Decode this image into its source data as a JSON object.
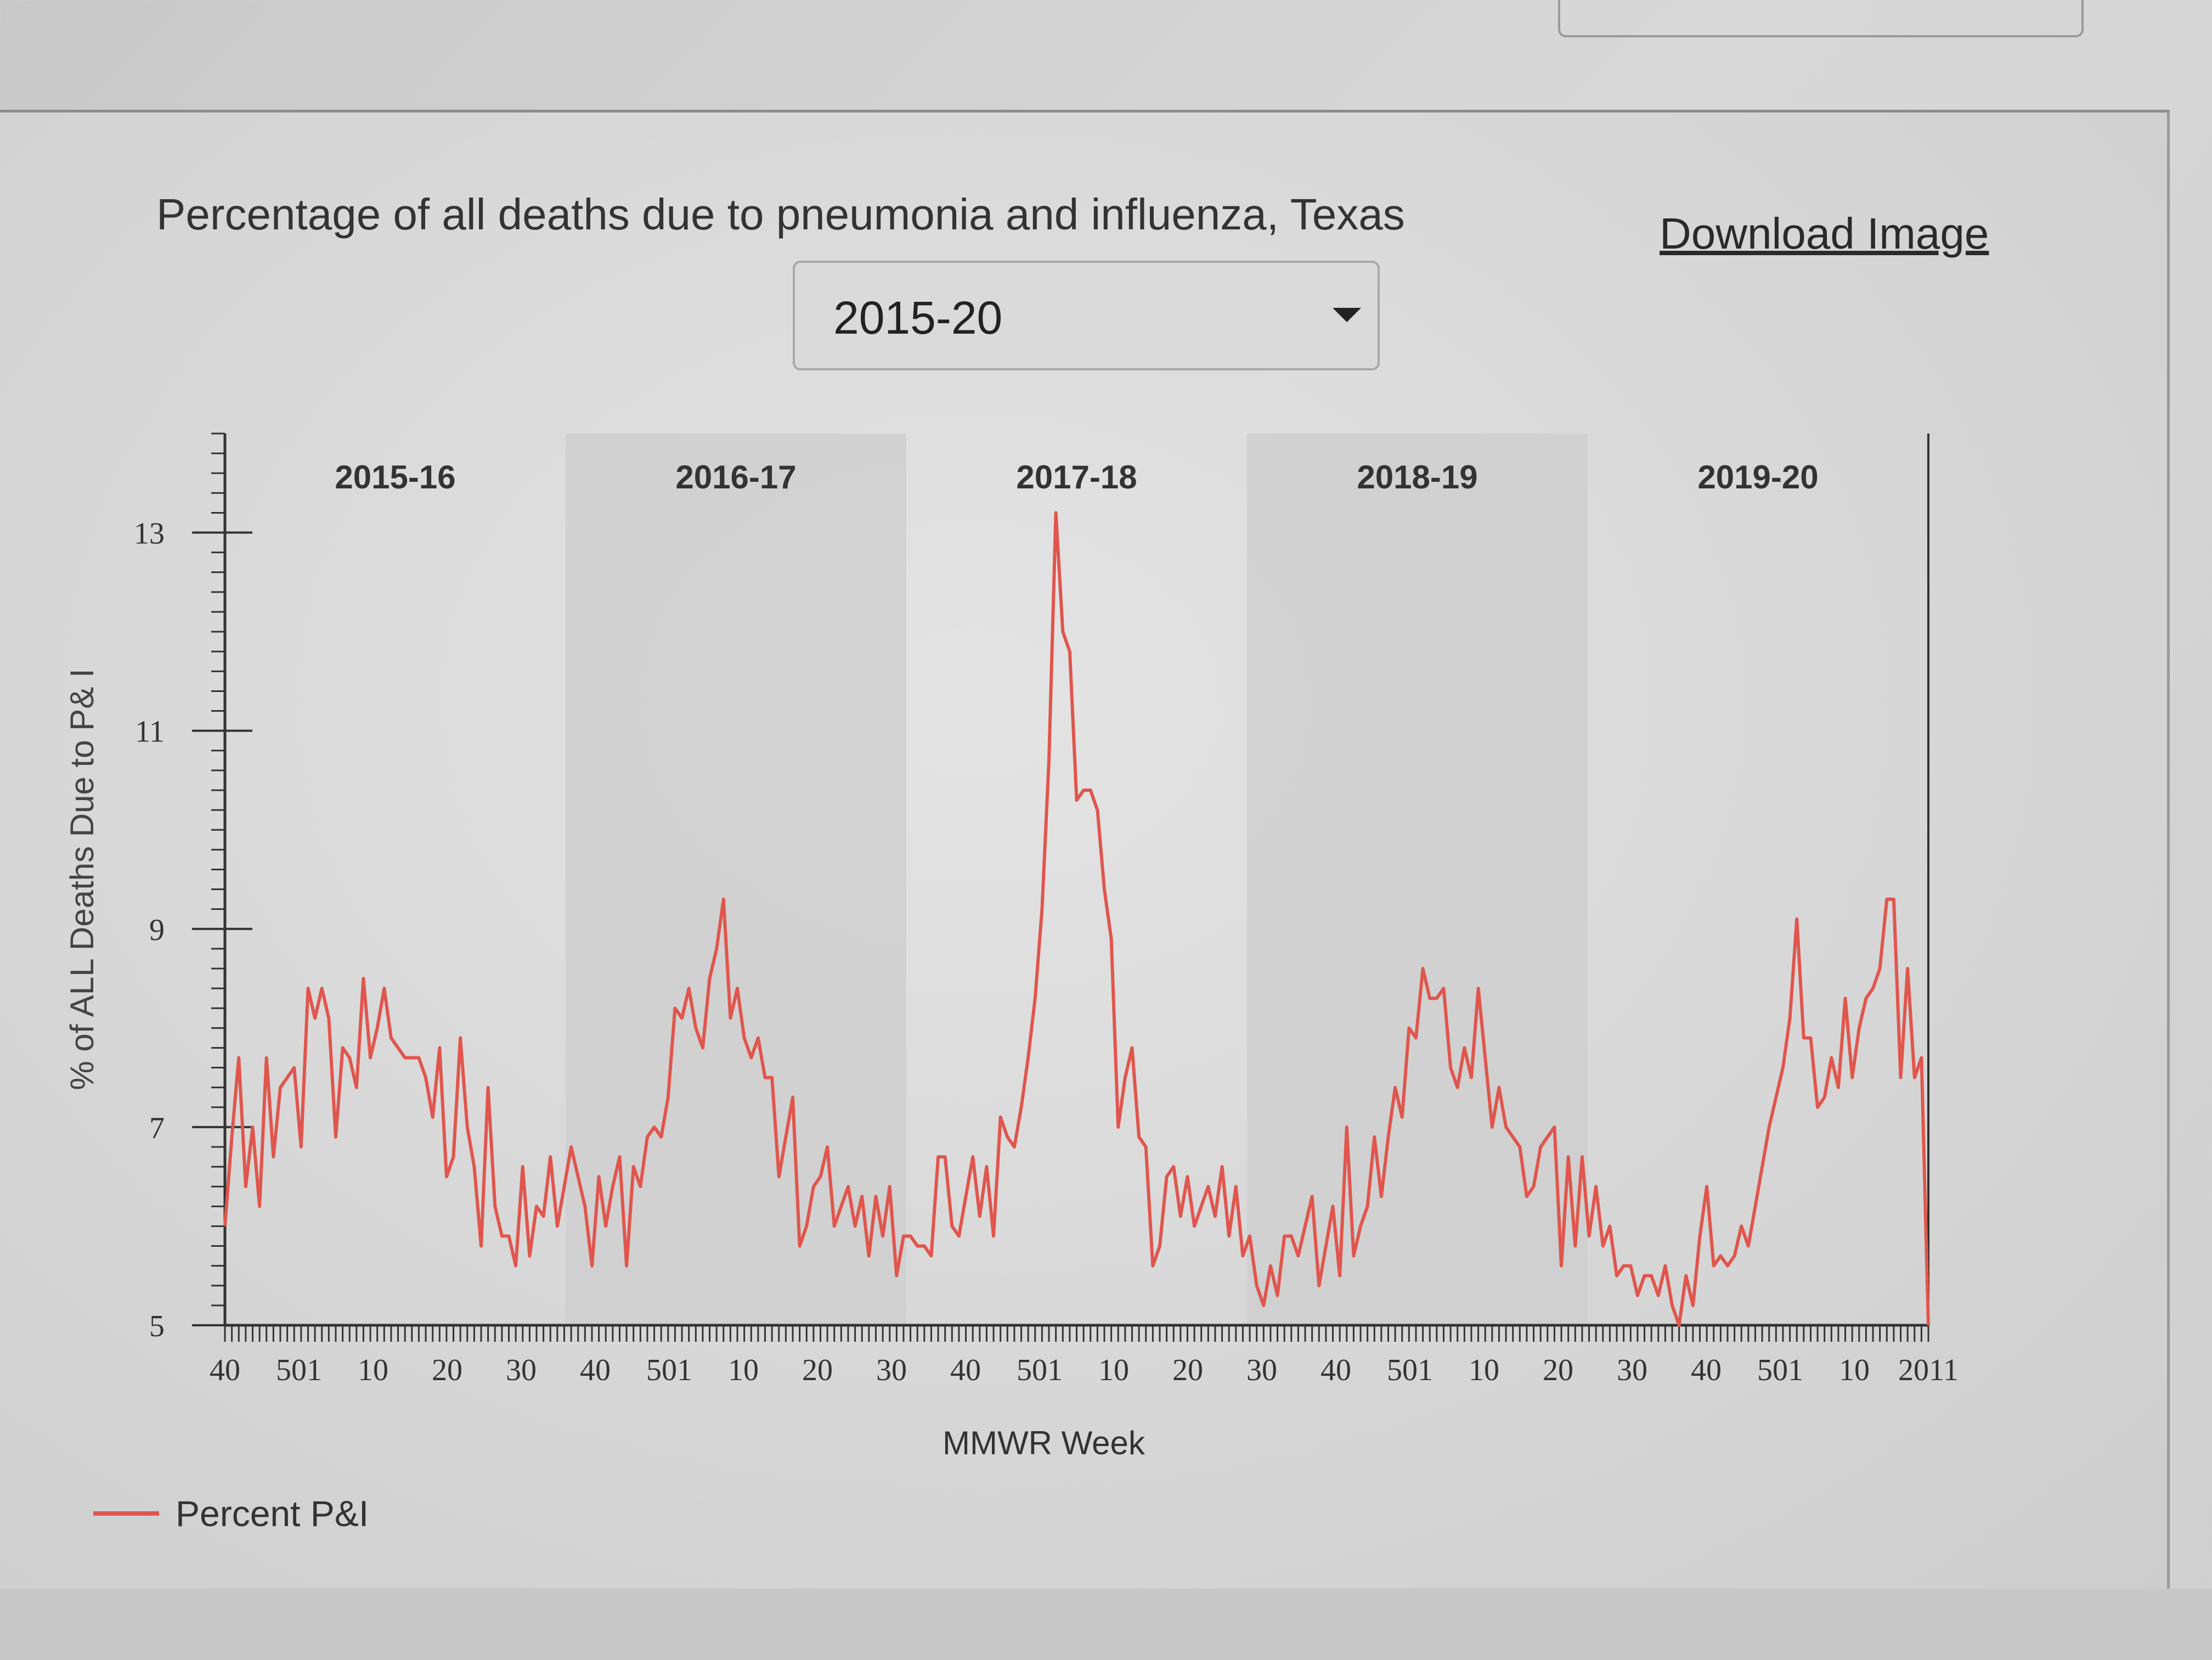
{
  "title": "Percentage of all deaths due to pneumonia and influenza, Texas",
  "download_label": "Download Image",
  "season_select": {
    "value": "2015-20"
  },
  "colors": {
    "line": "#e0564d",
    "shade": "#cfcfcf",
    "axis": "#333333"
  },
  "icons": {
    "select_caret": "chevron-down-icon"
  },
  "chart_data": {
    "type": "line",
    "xlabel": "MMWR Week",
    "ylabel": "% of ALL Deaths Due to P& I",
    "ylim": [
      5,
      14
    ],
    "yticks": [
      5,
      7,
      9,
      11,
      13
    ],
    "xtick_labels": [
      "40",
      "501",
      "10",
      "20",
      "30",
      "40",
      "501",
      "10",
      "20",
      "30",
      "40",
      "501",
      "10",
      "20",
      "30",
      "40",
      "501",
      "10",
      "20",
      "30",
      "40",
      "501",
      "10",
      "2011"
    ],
    "seasons": [
      "2015-16",
      "2016-17",
      "2017-18",
      "2018-19",
      "2019-20"
    ],
    "shaded_seasons": [
      "2016-17",
      "2018-19"
    ],
    "series": [
      {
        "name": "Percent P&I",
        "values": [
          6.0,
          6.9,
          7.7,
          6.4,
          7.0,
          6.2,
          7.7,
          6.7,
          7.4,
          7.5,
          7.6,
          6.8,
          8.4,
          8.1,
          8.4,
          8.1,
          6.9,
          7.8,
          7.7,
          7.4,
          8.5,
          7.7,
          8.0,
          8.4,
          7.9,
          7.8,
          7.7,
          7.7,
          7.7,
          7.5,
          7.1,
          7.8,
          6.5,
          6.7,
          7.9,
          7.0,
          6.6,
          5.8,
          7.4,
          6.2,
          5.9,
          5.9,
          5.6,
          6.6,
          5.7,
          6.2,
          6.1,
          6.7,
          6.0,
          6.4,
          6.8,
          6.5,
          6.2,
          5.6,
          6.5,
          6.0,
          6.4,
          6.7,
          5.6,
          6.6,
          6.4,
          6.9,
          7.0,
          6.9,
          7.3,
          8.2,
          8.1,
          8.4,
          8.0,
          7.8,
          8.5,
          8.8,
          9.3,
          8.1,
          8.4,
          7.9,
          7.7,
          7.9,
          7.5,
          7.5,
          6.5,
          6.9,
          7.3,
          5.8,
          6.0,
          6.4,
          6.5,
          6.8,
          6.0,
          6.2,
          6.4,
          6.0,
          6.3,
          5.7,
          6.3,
          5.9,
          6.4,
          5.5,
          5.9,
          5.9,
          5.8,
          5.8,
          5.7,
          6.7,
          6.7,
          6.0,
          5.9,
          6.3,
          6.7,
          6.1,
          6.6,
          5.9,
          7.1,
          6.9,
          6.8,
          7.2,
          7.7,
          8.3,
          9.2,
          10.7,
          13.2,
          12.0,
          11.8,
          10.3,
          10.4,
          10.4,
          10.2,
          9.4,
          8.9,
          7.0,
          7.5,
          7.8,
          6.9,
          6.8,
          5.6,
          5.8,
          6.5,
          6.6,
          6.1,
          6.5,
          6.0,
          6.2,
          6.4,
          6.1,
          6.6,
          5.9,
          6.4,
          5.7,
          5.9,
          5.4,
          5.2,
          5.6,
          5.3,
          5.9,
          5.9,
          5.7,
          6.0,
          6.3,
          5.4,
          5.8,
          6.2,
          5.5,
          7.0,
          5.7,
          6.0,
          6.2,
          6.9,
          6.3,
          6.9,
          7.4,
          7.1,
          8.0,
          7.9,
          8.6,
          8.3,
          8.3,
          8.4,
          7.6,
          7.4,
          7.8,
          7.5,
          8.4,
          7.7,
          7.0,
          7.4,
          7.0,
          6.9,
          6.8,
          6.3,
          6.4,
          6.8,
          6.9,
          7.0,
          5.6,
          6.7,
          5.8,
          6.7,
          5.9,
          6.4,
          5.8,
          6.0,
          5.5,
          5.6,
          5.6,
          5.3,
          5.5,
          5.5,
          5.3,
          5.6,
          5.2,
          5.0,
          5.5,
          5.2,
          5.9,
          6.4,
          5.6,
          5.7,
          5.6,
          5.7,
          6.0,
          5.8,
          6.2,
          6.6,
          7.0,
          7.3,
          7.6,
          8.1,
          9.1,
          7.9,
          7.9,
          7.2,
          7.3,
          7.7,
          7.4,
          8.3,
          7.5,
          8.0,
          8.3,
          8.4,
          8.6,
          9.3,
          9.3,
          7.5,
          8.6,
          7.5,
          7.7,
          5.0
        ]
      }
    ]
  }
}
